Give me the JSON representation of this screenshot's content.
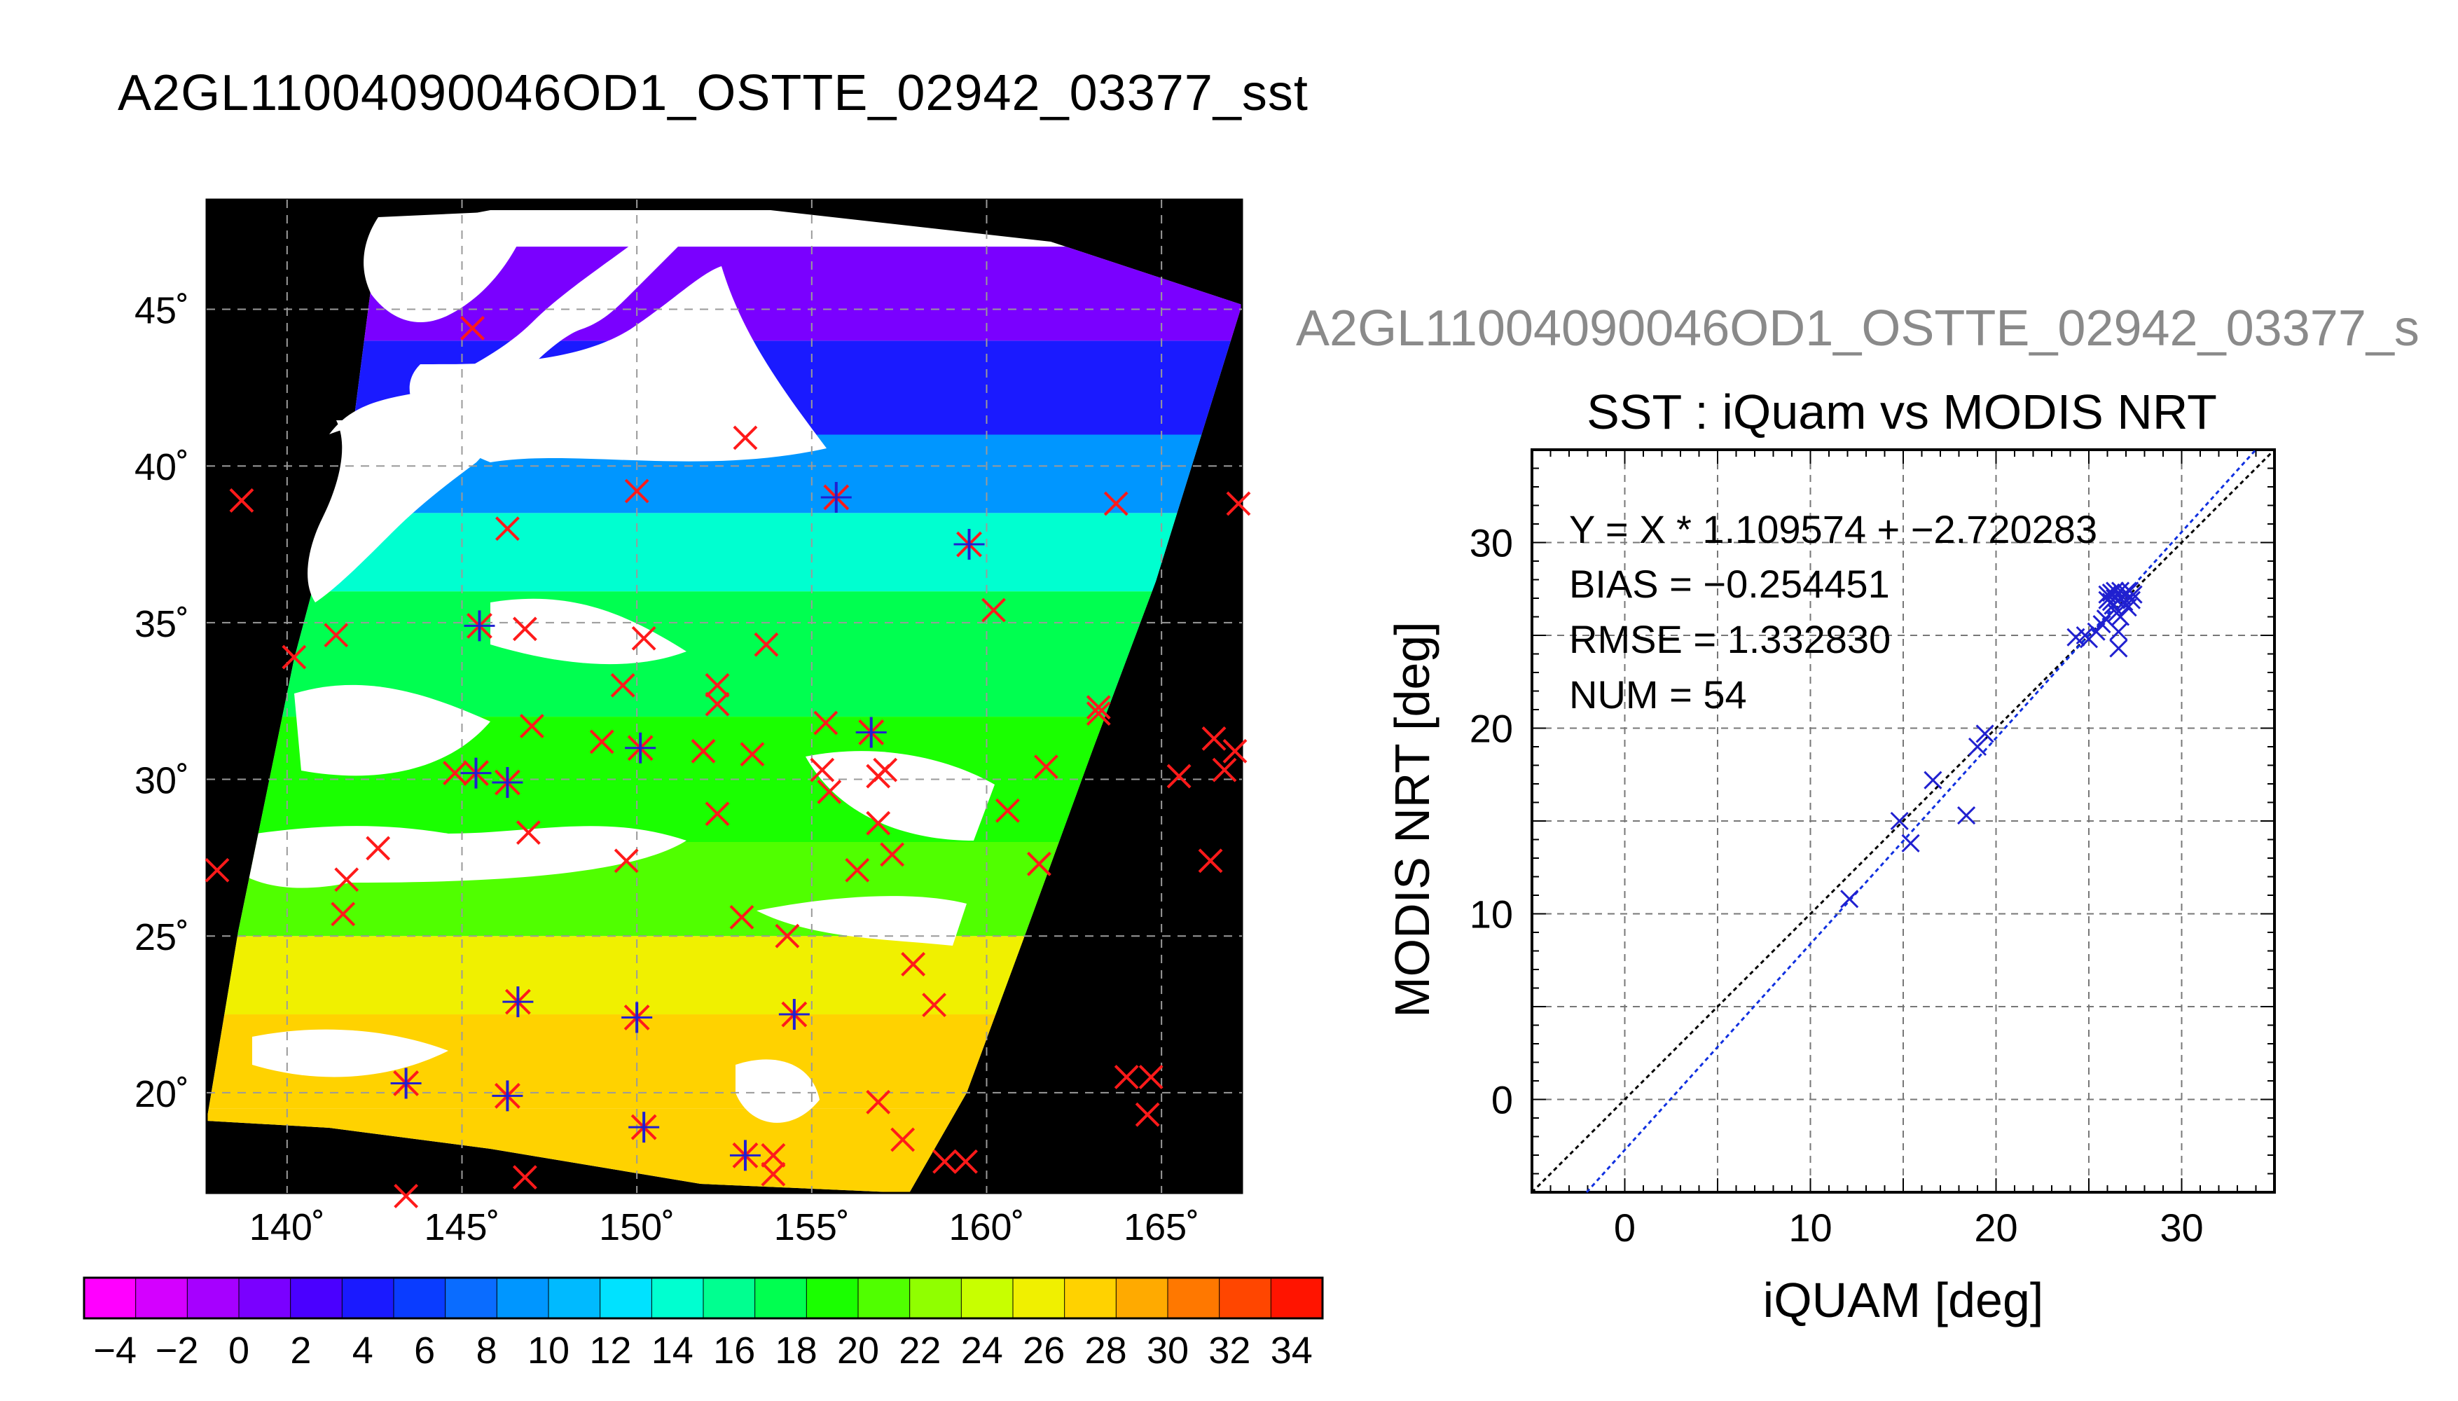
{
  "page": {
    "title": "A2GL11004090046OD1_OSTTE_02942_03377_sst",
    "scatter_header": "A2GL11004090046OD1_OSTTE_02942_03377_s"
  },
  "colors": {
    "map_background": "#000000",
    "cloud_land": "#ffffff",
    "grid": "#9a9a9a",
    "marker_red": "#ff1a1a",
    "marker_blue": "#2020d0",
    "fit_line_blue": "#1030e0"
  },
  "chart_data": [
    {
      "type": "heatmap",
      "name_note": "map",
      "x_ticks": [
        "140˚",
        "145˚",
        "150˚",
        "155˚",
        "160˚",
        "165˚"
      ],
      "x_tick_values": [
        140,
        145,
        150,
        155,
        160,
        165
      ],
      "y_ticks": [
        "20˚",
        "25˚",
        "30˚",
        "35˚",
        "40˚",
        "45˚"
      ],
      "y_tick_values": [
        20,
        25,
        30,
        35,
        40,
        45
      ],
      "xlim": [
        137.7,
        167.3
      ],
      "ylim": [
        16.8,
        48.5
      ],
      "grid": true,
      "sst_bands": [
        {
          "lat_from": 16.8,
          "lat_to": 19.5,
          "sst": 28
        },
        {
          "lat_from": 19.5,
          "lat_to": 22.5,
          "sst": 27
        },
        {
          "lat_from": 22.5,
          "lat_to": 25.0,
          "sst": 25
        },
        {
          "lat_from": 25.0,
          "lat_to": 28.0,
          "sst": 21
        },
        {
          "lat_from": 28.0,
          "lat_to": 32.0,
          "sst": 19
        },
        {
          "lat_from": 32.0,
          "lat_to": 36.0,
          "sst": 17
        },
        {
          "lat_from": 36.0,
          "lat_to": 38.5,
          "sst": 14
        },
        {
          "lat_from": 38.5,
          "lat_to": 41.0,
          "sst": 9
        },
        {
          "lat_from": 41.0,
          "lat_to": 44.0,
          "sst": 4
        },
        {
          "lat_from": 44.0,
          "lat_to": 47.0,
          "sst": 1
        }
      ],
      "points_red": [
        [
          138.7,
          38.9
        ],
        [
          140.2,
          33.9
        ],
        [
          141.4,
          34.6
        ],
        [
          141.7,
          26.8
        ],
        [
          141.6,
          25.7
        ],
        [
          142.6,
          27.8
        ],
        [
          144.8,
          30.2
        ],
        [
          145.3,
          44.4
        ],
        [
          146.3,
          38.0
        ],
        [
          146.8,
          34.8
        ],
        [
          147.0,
          31.7
        ],
        [
          146.9,
          28.3
        ],
        [
          149.0,
          31.2
        ],
        [
          149.7,
          27.4
        ],
        [
          150.0,
          39.2
        ],
        [
          150.2,
          34.5
        ],
        [
          149.6,
          33.0
        ],
        [
          151.9,
          30.9
        ],
        [
          152.3,
          33.0
        ],
        [
          152.3,
          32.4
        ],
        [
          152.3,
          28.9
        ],
        [
          153.1,
          40.9
        ],
        [
          153.3,
          30.8
        ],
        [
          153.7,
          34.3
        ],
        [
          155.4,
          31.8
        ],
        [
          155.3,
          30.3
        ],
        [
          155.5,
          29.6
        ],
        [
          156.3,
          27.1
        ],
        [
          156.9,
          30.1
        ],
        [
          157.1,
          30.3
        ],
        [
          156.9,
          28.6
        ],
        [
          157.3,
          27.6
        ],
        [
          153.0,
          25.6
        ],
        [
          154.3,
          25.0
        ],
        [
          156.9,
          19.7
        ],
        [
          157.6,
          18.5
        ],
        [
          157.9,
          24.1
        ],
        [
          158.5,
          22.8
        ],
        [
          158.8,
          17.8
        ],
        [
          159.4,
          17.8
        ],
        [
          160.2,
          35.4
        ],
        [
          160.6,
          29.0
        ],
        [
          161.5,
          27.3
        ],
        [
          161.7,
          30.4
        ],
        [
          163.2,
          32.3
        ],
        [
          163.2,
          32.1
        ],
        [
          163.7,
          38.8
        ],
        [
          164.0,
          20.5
        ],
        [
          164.7,
          20.5
        ],
        [
          164.6,
          19.3
        ],
        [
          165.5,
          30.1
        ],
        [
          166.4,
          27.4
        ],
        [
          166.5,
          31.3
        ],
        [
          166.8,
          30.3
        ],
        [
          167.1,
          30.9
        ],
        [
          138.0,
          27.1
        ],
        [
          143.4,
          16.7
        ],
        [
          146.8,
          17.3
        ],
        [
          153.9,
          17.4
        ],
        [
          153.9,
          18.0
        ],
        [
          167.2,
          38.8
        ]
      ],
      "points_blue": [
        [
          155.7,
          39.0
        ],
        [
          159.5,
          37.5
        ],
        [
          145.5,
          34.9
        ],
        [
          150.1,
          31.0
        ],
        [
          145.4,
          30.2
        ],
        [
          146.3,
          29.9
        ],
        [
          156.7,
          31.5
        ],
        [
          146.6,
          22.9
        ],
        [
          150.0,
          22.4
        ],
        [
          154.5,
          22.5
        ],
        [
          143.4,
          20.3
        ],
        [
          146.3,
          19.9
        ],
        [
          150.2,
          18.9
        ],
        [
          153.1,
          18.0
        ]
      ]
    },
    {
      "type": "scatter",
      "title": "SST : iQuam vs MODIS NRT",
      "xlabel": "iQUAM [deg]",
      "ylabel": "MODIS NRT [deg]",
      "xlim": [
        -5,
        35
      ],
      "ylim": [
        -5,
        35
      ],
      "x_ticks": [
        "0",
        "10",
        "20",
        "30"
      ],
      "y_ticks": [
        "0",
        "10",
        "20",
        "30"
      ],
      "x_tick_values": [
        0,
        10,
        20,
        30
      ],
      "y_tick_values": [
        0,
        10,
        20,
        30
      ],
      "grid": true,
      "stats": {
        "fit": "Y = X * 1.109574 + −2.720283",
        "bias": "BIAS = −0.254451",
        "rmse": "RMSE = 1.332830",
        "num": "NUM = 54"
      },
      "fit_slope": 1.109574,
      "fit_intercept": -2.720283,
      "points": [
        [
          12.1,
          10.8
        ],
        [
          14.8,
          15.0
        ],
        [
          15.4,
          13.8
        ],
        [
          16.6,
          17.2
        ],
        [
          18.4,
          15.3
        ],
        [
          19.0,
          19.0
        ],
        [
          19.4,
          19.7
        ],
        [
          24.3,
          24.9
        ],
        [
          24.8,
          25.0
        ],
        [
          25.0,
          24.8
        ],
        [
          25.4,
          25.2
        ],
        [
          25.7,
          25.6
        ],
        [
          25.9,
          25.9
        ],
        [
          26.0,
          27.2
        ],
        [
          26.0,
          26.9
        ],
        [
          26.2,
          27.3
        ],
        [
          26.3,
          26.6
        ],
        [
          26.4,
          27.0
        ],
        [
          26.5,
          26.2
        ],
        [
          26.6,
          25.2
        ],
        [
          26.6,
          24.3
        ],
        [
          26.7,
          27.4
        ],
        [
          26.8,
          27.1
        ],
        [
          26.9,
          26.8
        ],
        [
          27.0,
          27.3
        ],
        [
          27.1,
          26.5
        ],
        [
          27.2,
          27.4
        ],
        [
          27.3,
          26.9
        ],
        [
          27.4,
          27.2
        ],
        [
          26.2,
          26.8
        ],
        [
          26.4,
          27.4
        ],
        [
          26.7,
          26.0
        ]
      ]
    },
    {
      "type": "heatmap",
      "name_note": "colorbar",
      "ticks": [
        "−4",
        "−2",
        "0",
        "2",
        "4",
        "6",
        "8",
        "10",
        "12",
        "14",
        "16",
        "18",
        "20",
        "22",
        "24",
        "26",
        "28",
        "30",
        "32",
        "34"
      ],
      "tick_values": [
        -4,
        -2,
        0,
        2,
        4,
        6,
        8,
        10,
        12,
        14,
        16,
        18,
        20,
        22,
        24,
        26,
        28,
        30,
        32,
        34
      ],
      "range": [
        -5,
        35
      ],
      "colors": [
        "#ff00ff",
        "#d400ff",
        "#a600ff",
        "#7a00ff",
        "#4a00ff",
        "#1a1aff",
        "#0a3cff",
        "#0a6cff",
        "#0096ff",
        "#00baff",
        "#00e2ff",
        "#00ffd0",
        "#00ff90",
        "#00ff50",
        "#1aff00",
        "#50ff00",
        "#90ff00",
        "#c8ff00",
        "#f0f000",
        "#ffd200",
        "#ffaa00",
        "#ff7800",
        "#ff4600",
        "#ff1400"
      ]
    }
  ]
}
